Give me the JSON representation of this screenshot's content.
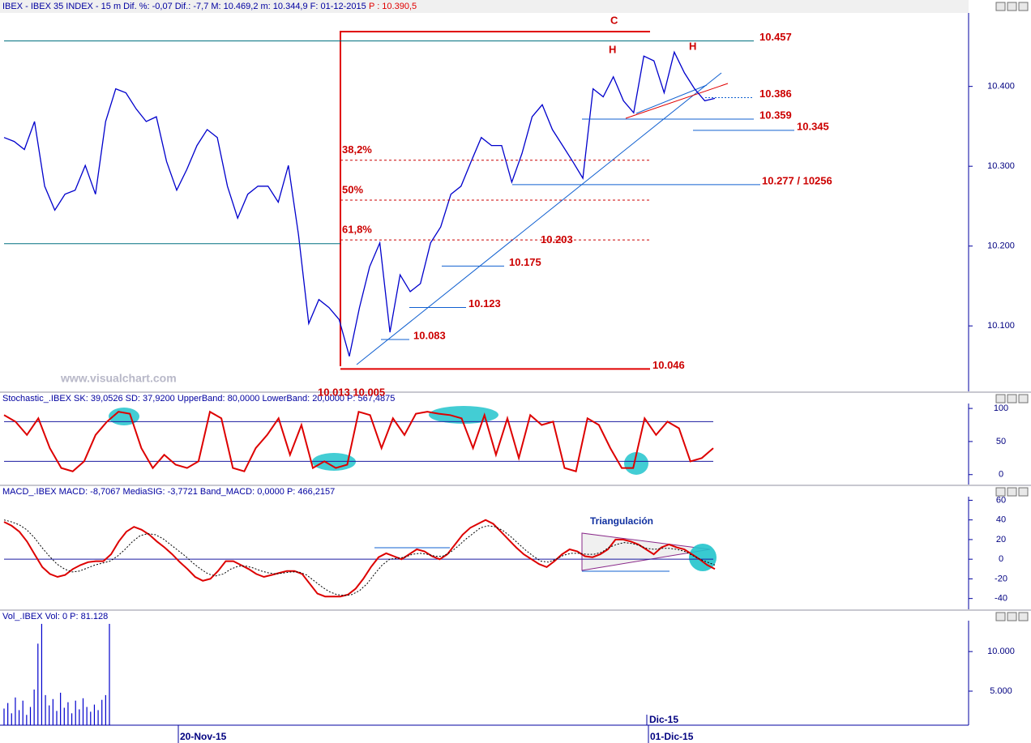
{
  "chart_data": [
    {
      "type": "line",
      "title": "IBEX - IBEX 35 INDEX - 15 m Dif. %: -0,07 Dif.: -7,7 M: 10.469,2 m: 10.344,9 F: 01-12-2015",
      "title_price": "P : 10.390,5",
      "color": "#0000cc",
      "values": [
        10336,
        10331,
        10321,
        10356,
        10275,
        10245,
        10265,
        10270,
        10301,
        10265,
        10356,
        10397,
        10392,
        10372,
        10356,
        10362,
        10306,
        10270,
        10296,
        10326,
        10346,
        10336,
        10275,
        10235,
        10265,
        10275,
        10275,
        10255,
        10301,
        10214,
        10103,
        10133,
        10123,
        10108,
        10062,
        10123,
        10174,
        10204,
        10092,
        10164,
        10143,
        10153,
        10204,
        10224,
        10265,
        10275,
        10306,
        10336,
        10326,
        10326,
        10280,
        10316,
        10362,
        10377,
        10346,
        10326,
        10306,
        10285,
        10397,
        10387,
        10412,
        10382,
        10367,
        10438,
        10432,
        10392,
        10443,
        10417,
        10397,
        10382,
        10385
      ],
      "ylim": [
        10018,
        10490
      ],
      "yticks": [
        {
          "value": 10100,
          "label": "10.100"
        },
        {
          "value": 10200,
          "label": "10.200"
        },
        {
          "value": 10300,
          "label": "10.300"
        },
        {
          "value": 10400,
          "label": "10.400"
        }
      ],
      "levels": [
        {
          "value": 10457,
          "label": "10.457"
        },
        {
          "value": 10386,
          "label": "10.386"
        },
        {
          "value": 10359,
          "label": "10.359"
        },
        {
          "value": 10345,
          "label": "10.345"
        },
        {
          "value": 10277,
          "label": "10.277 / 10256"
        },
        {
          "value": 10203,
          "label": "10.203"
        },
        {
          "value": 10175,
          "label": "10.175"
        },
        {
          "value": 10123,
          "label": "10.123"
        },
        {
          "value": 10083,
          "label": "10.083"
        },
        {
          "value": 10046,
          "label": "10.046"
        }
      ],
      "retracement": {
        "high": 10469.2,
        "low": 10046,
        "levels": [
          {
            "value": 38.2,
            "label": "38,2%"
          },
          {
            "value": 50,
            "label": "50%"
          },
          {
            "value": 61.8,
            "label": "61,8%"
          }
        ]
      },
      "annotations": [
        "C",
        "H",
        "H"
      ],
      "cut_label": "10.013 10.005",
      "watermark": "www.visualchart.com",
      "date_labels": [
        "20-Nov-15",
        "01-Dic-15"
      ],
      "month_label": "Dic-15"
    },
    {
      "type": "line",
      "title": "Stochastic_.IBEX SK: 39,0526 SD: 37,9200 UpperBand: 80,0000 LowerBand: 20,0000 P: 567,4875",
      "color": "#dd0000",
      "values": [
        90,
        80,
        60,
        85,
        40,
        10,
        5,
        20,
        60,
        80,
        95,
        92,
        40,
        10,
        30,
        15,
        10,
        20,
        95,
        85,
        10,
        5,
        40,
        60,
        85,
        30,
        75,
        10,
        20,
        10,
        15,
        95,
        90,
        40,
        85,
        60,
        92,
        95,
        92,
        90,
        85,
        40,
        90,
        30,
        85,
        25,
        90,
        75,
        80,
        10,
        5,
        85,
        75,
        40,
        10,
        10,
        85,
        60,
        80,
        70,
        20,
        25,
        40
      ],
      "ylim": [
        -15,
        105
      ],
      "yticks": [
        0,
        50,
        100
      ],
      "bands": [
        80,
        20
      ]
    },
    {
      "type": "line",
      "title": "MACD_.IBEX MACD: -8,7067 MediaSIG: -3,7721 Band_MACD: 0,0000 P: 466,2157",
      "annotation": "Triangulación",
      "series": [
        {
          "color": "#dd0000",
          "dashed": false,
          "values": [
            38,
            34,
            28,
            18,
            5,
            -8,
            -15,
            -18,
            -16,
            -10,
            -6,
            -3,
            -2,
            -2,
            5,
            18,
            28,
            33,
            30,
            25,
            18,
            12,
            5,
            -3,
            -10,
            -18,
            -22,
            -20,
            -12,
            -2,
            -2,
            -6,
            -10,
            -15,
            -18,
            -16,
            -14,
            -12,
            -12,
            -15,
            -25,
            -35,
            -38,
            -38,
            -38,
            -36,
            -30,
            -20,
            -8,
            2,
            6,
            3,
            0,
            5,
            10,
            8,
            3,
            0,
            5,
            15,
            25,
            32,
            36,
            40,
            36,
            28,
            20,
            12,
            5,
            0,
            -5,
            -8,
            -2,
            5,
            10,
            8,
            3,
            2,
            5,
            10,
            20,
            20,
            18,
            15,
            10,
            5,
            12,
            15,
            12,
            10,
            5,
            0,
            -6,
            -10
          ]
        },
        {
          "color": "#000000",
          "dashed": true,
          "values": [
            40,
            38,
            35,
            30,
            22,
            12,
            3,
            -5,
            -10,
            -13,
            -12,
            -9,
            -6,
            -4,
            -2,
            3,
            10,
            18,
            24,
            26,
            25,
            21,
            15,
            9,
            3,
            -4,
            -10,
            -15,
            -17,
            -15,
            -10,
            -7,
            -7,
            -9,
            -12,
            -14,
            -15,
            -14,
            -13,
            -13,
            -16,
            -22,
            -28,
            -33,
            -36,
            -37,
            -36,
            -32,
            -25,
            -15,
            -6,
            0,
            1,
            2,
            5,
            6,
            5,
            3,
            3,
            7,
            13,
            20,
            26,
            32,
            34,
            33,
            29,
            23,
            16,
            9,
            3,
            -2,
            -3,
            0,
            4,
            6,
            6,
            5,
            5,
            7,
            12,
            15,
            17,
            16,
            14,
            11,
            10,
            11,
            11,
            10,
            8,
            4,
            0,
            -3,
            -6
          ]
        }
      ],
      "ylim": [
        -51,
        62
      ],
      "yticks": [
        -40,
        -20,
        0,
        20,
        40,
        60
      ],
      "bands": [
        0
      ]
    },
    {
      "type": "bar",
      "title": "Vol_.IBEX Vol: 0 P: 81.128",
      "color": "#0000cc",
      "values": [
        2800,
        3500,
        2200,
        4200,
        2600,
        3800,
        2000,
        3000,
        5200,
        11000,
        13500,
        4500,
        3200,
        4000,
        2500,
        4800,
        2900,
        3600,
        2200,
        3800,
        2700,
        4100,
        3000,
        2400,
        3300,
        2600,
        3900,
        4500,
        13500
      ],
      "ylim": [
        700,
        13700
      ],
      "yticks": [
        {
          "value": 5000,
          "label": "5.000"
        },
        {
          "value": 10000,
          "label": "10.000"
        }
      ]
    }
  ]
}
